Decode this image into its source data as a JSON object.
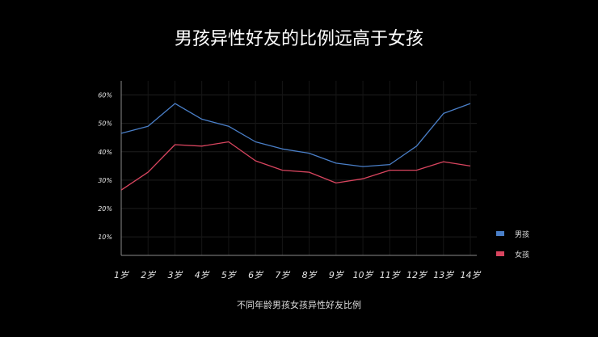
{
  "title": "男孩异性好友的比例远高于女孩",
  "caption": "不同年龄男孩女孩异性好友比例",
  "chart_data": {
    "type": "line",
    "title": "男孩异性好友的比例远高于女孩",
    "xlabel": "不同年龄男孩女孩异性好友比例",
    "ylabel": "",
    "categories": [
      "1岁",
      "2岁",
      "3岁",
      "4岁",
      "5岁",
      "6岁",
      "7岁",
      "8岁",
      "9岁",
      "10岁",
      "11岁",
      "12岁",
      "13岁",
      "14岁"
    ],
    "yticks": [
      "10%",
      "20%",
      "30%",
      "40%",
      "50%",
      "60%"
    ],
    "ylim": [
      3.5,
      65
    ],
    "grid": true,
    "legend": "right",
    "series": [
      {
        "name": "男孩",
        "color": "#4a7fc8",
        "values": [
          46.5,
          49,
          57,
          51.5,
          49,
          43.5,
          41,
          39.5,
          36,
          34.8,
          35.5,
          42,
          53.5,
          57
        ]
      },
      {
        "name": "女孩",
        "color": "#d9455f",
        "values": [
          26.5,
          32.8,
          42.5,
          42,
          43.5,
          36.8,
          33.5,
          32.8,
          29,
          30.5,
          33.5,
          33.5,
          36.5,
          35
        ]
      }
    ]
  }
}
